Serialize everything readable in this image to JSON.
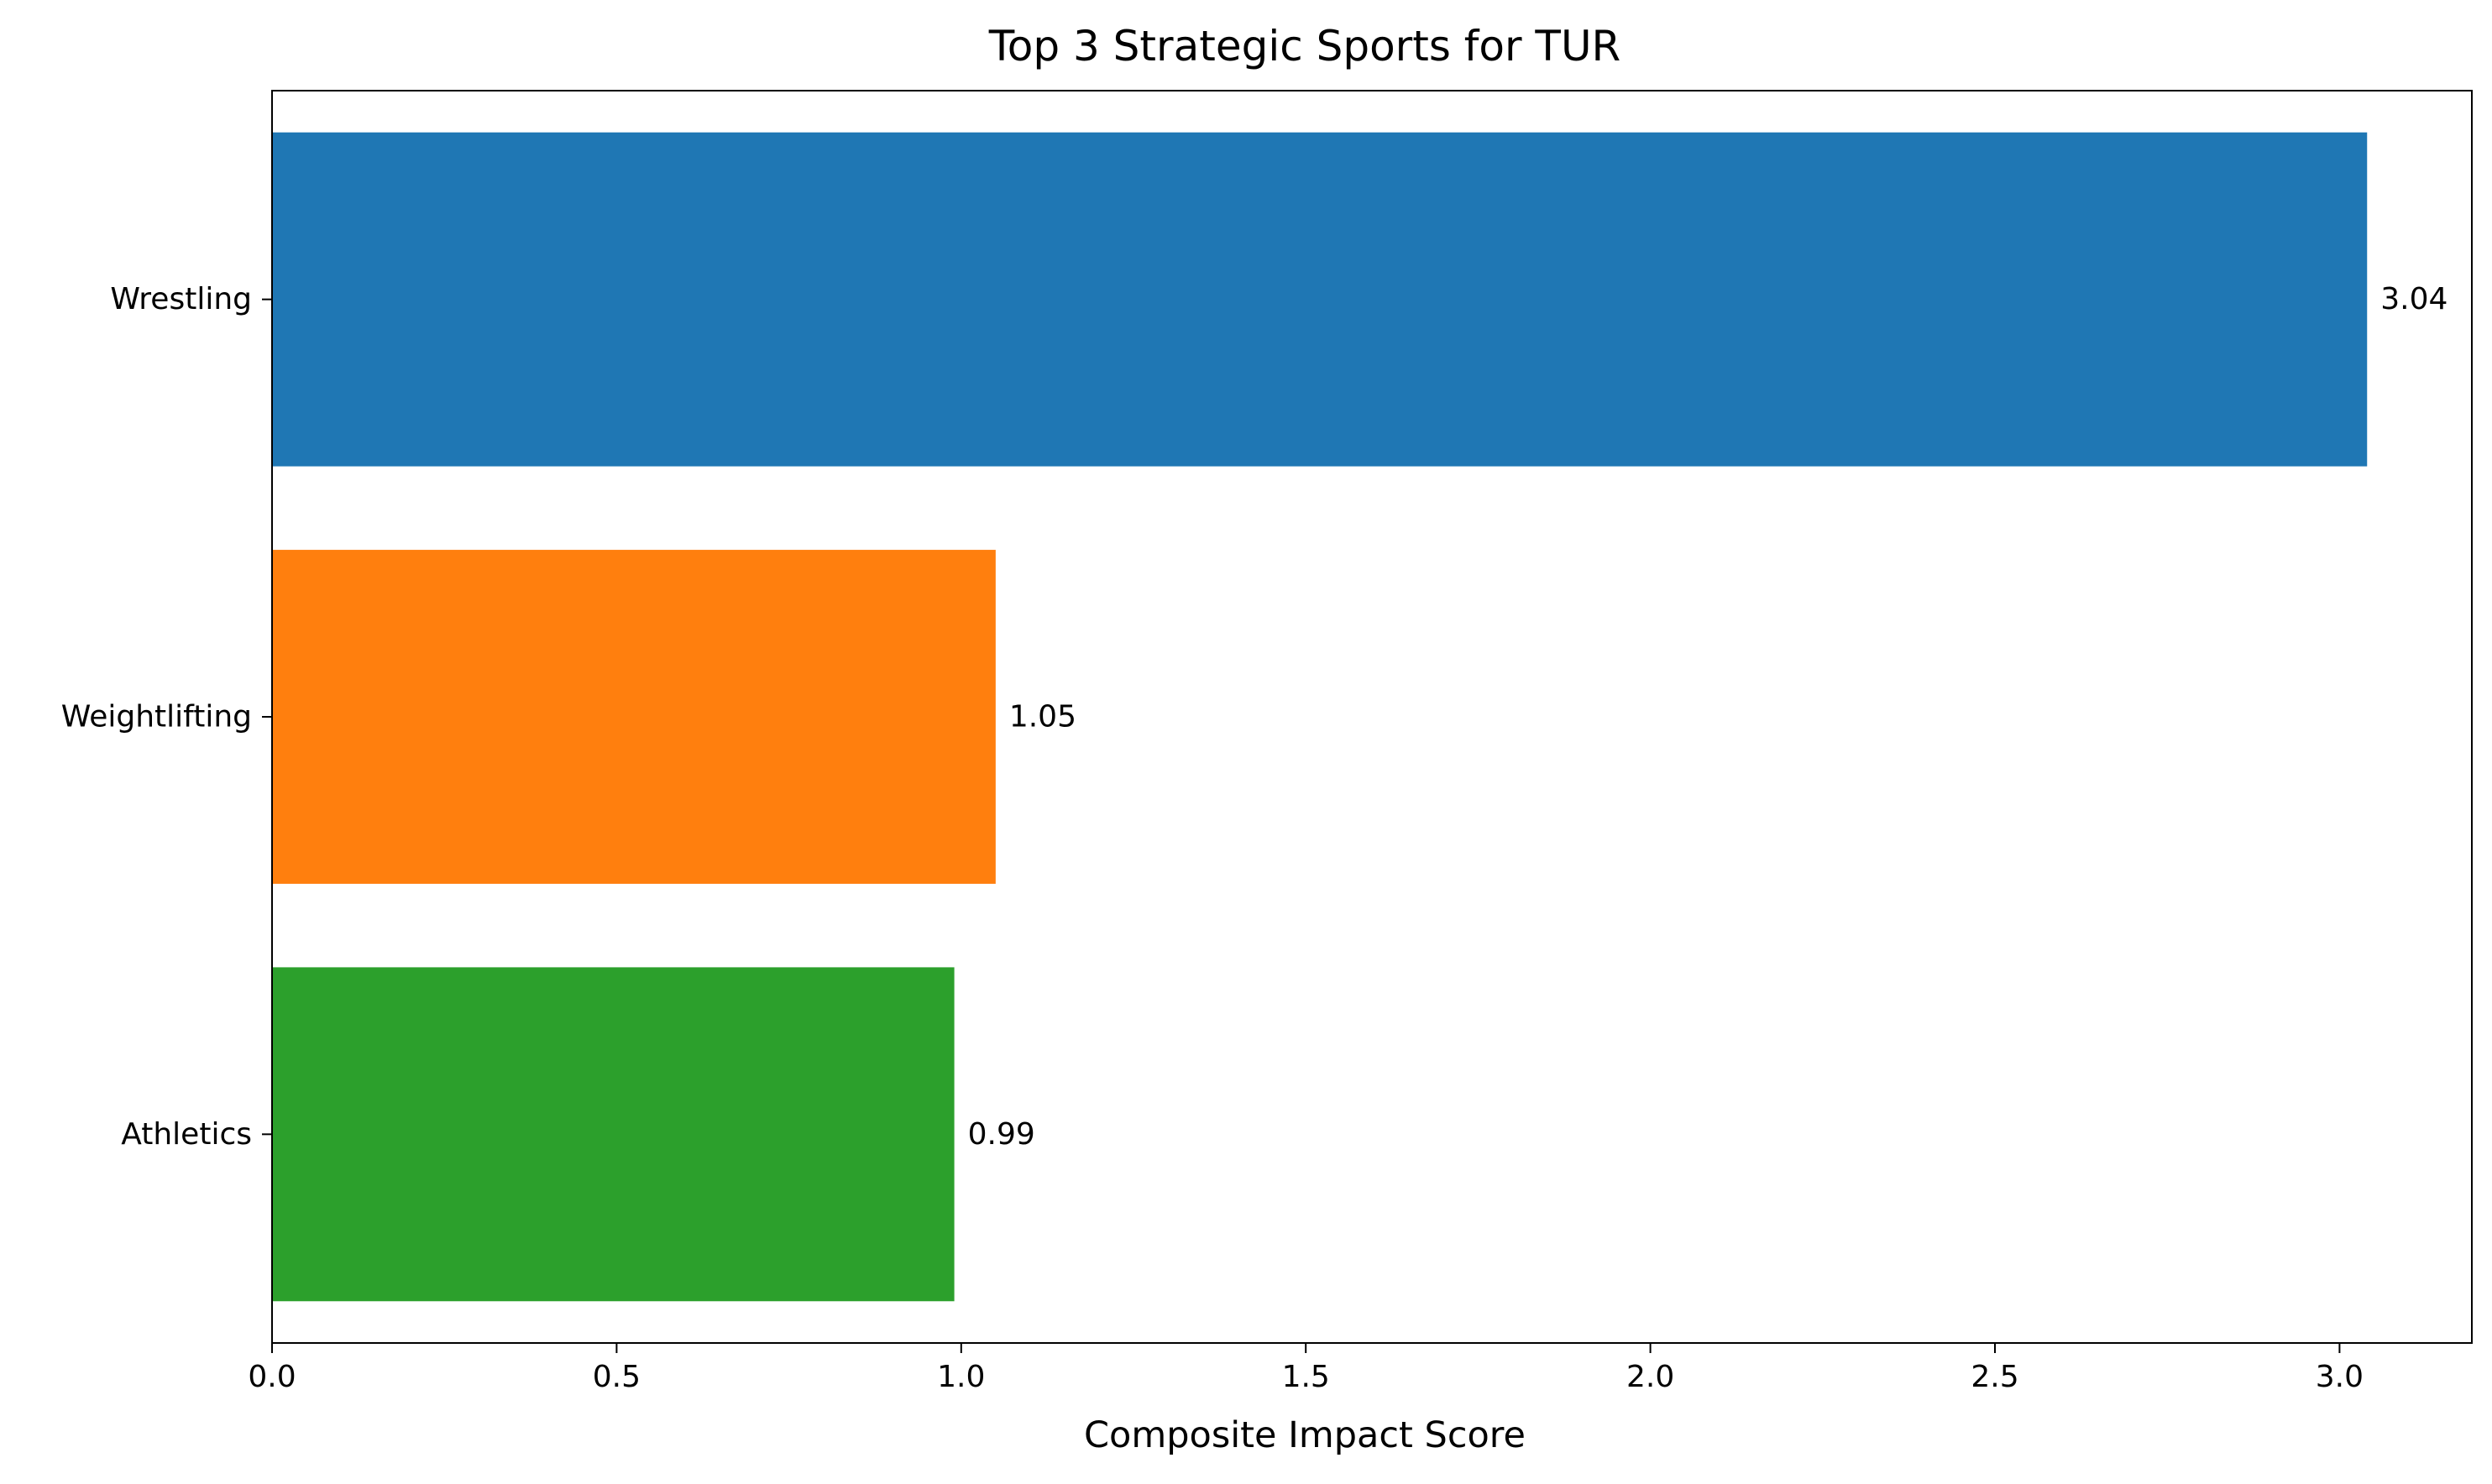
{
  "chart_data": {
    "type": "bar",
    "orientation": "horizontal",
    "title": "Top 3 Strategic Sports for TUR",
    "xlabel": "Composite Impact Score",
    "ylabel": "",
    "categories": [
      "Wrestling",
      "Weightlifting",
      "Athletics"
    ],
    "values": [
      3.04,
      1.05,
      0.99
    ],
    "value_labels": [
      "3.04",
      "1.05",
      "0.99"
    ],
    "colors": [
      "#1f77b4",
      "#ff7f0e",
      "#2ca02c"
    ],
    "xlim": [
      0,
      3.192
    ],
    "x_ticks": [
      0.0,
      0.5,
      1.0,
      1.5,
      2.0,
      2.5,
      3.0
    ],
    "x_tick_labels": [
      "0.0",
      "0.5",
      "1.0",
      "1.5",
      "2.0",
      "2.5",
      "3.0"
    ],
    "grid": false,
    "legend": "none"
  }
}
